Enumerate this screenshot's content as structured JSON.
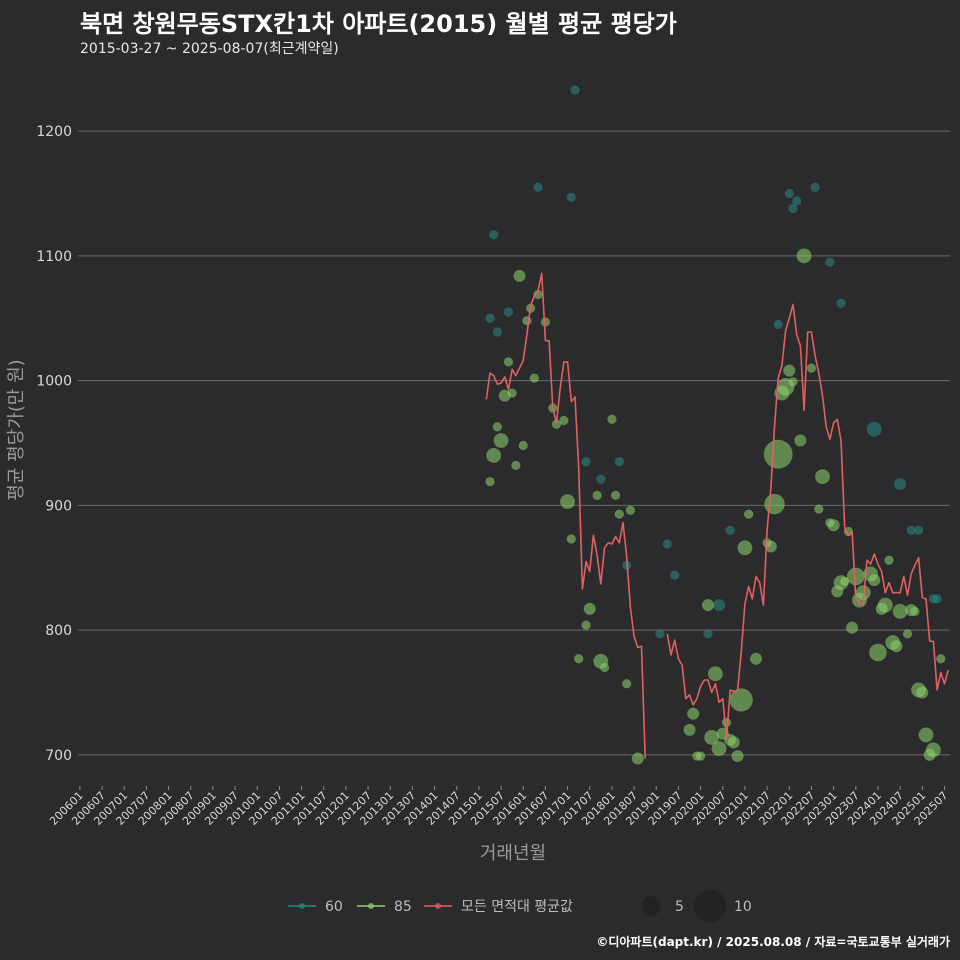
{
  "title": "북면 창원무동STX칸1차 아파트(2015) 월별 평균 평당가",
  "subtitle": "2015-03-27 ~ 2025-08-07(최근계약일)",
  "credit": "©디아파트(dapt.kr) / 2025.08.08 / 자료=국토교통부 실거래가",
  "colors": {
    "s60": "#2a8a86",
    "s85": "#8ed66b",
    "avg": "#e06060",
    "grid": "#6a6a6a",
    "bg": "#2b2b2d"
  },
  "chart_data": {
    "type": "line",
    "xlabel": "거래년월",
    "ylabel": "평균 평당가(만 원)",
    "ylim": [
      675,
      1245
    ],
    "yticks": [
      700,
      800,
      900,
      1000,
      1100,
      1200
    ],
    "x_start": "200601",
    "x_end": "202508",
    "xtick_labels": [
      "200601",
      "200607",
      "200701",
      "200707",
      "200801",
      "200807",
      "200901",
      "200907",
      "201001",
      "201007",
      "201101",
      "201107",
      "201201",
      "201207",
      "201301",
      "201307",
      "201401",
      "201407",
      "201501",
      "201507",
      "201601",
      "201607",
      "201701",
      "201707",
      "201801",
      "201807",
      "201901",
      "201907",
      "202001",
      "202007",
      "202101",
      "202107",
      "202201",
      "202207",
      "202301",
      "202307",
      "202401",
      "202407",
      "202501",
      "202507"
    ],
    "legend": {
      "series": [
        {
          "key": "s60",
          "label": "60"
        },
        {
          "key": "s85",
          "label": "85"
        },
        {
          "key": "avg",
          "label": "모든 면적대 평균값"
        }
      ],
      "sizes": [
        {
          "n": 5,
          "label": "5"
        },
        {
          "n": 10,
          "label": "10"
        }
      ]
    },
    "avg_line": [
      [
        "201503",
        985
      ],
      [
        "201504",
        1006
      ],
      [
        "201505",
        1004
      ],
      [
        "201506",
        997
      ],
      [
        "201507",
        998
      ],
      [
        "201508",
        1003
      ],
      [
        "201509",
        993
      ],
      [
        "201510",
        1009
      ],
      [
        "201511",
        1004
      ],
      [
        "201512",
        1010
      ],
      [
        "201601",
        1016
      ],
      [
        "201602",
        1037
      ],
      [
        "201603",
        1060
      ],
      [
        "201604",
        1068
      ],
      [
        "201605",
        1072
      ],
      [
        "201606",
        1086
      ],
      [
        "201607",
        1032
      ],
      [
        "201608",
        1032
      ],
      [
        "201609",
        978
      ],
      [
        "201610",
        966
      ],
      [
        "201611",
        994
      ],
      [
        "201612",
        1015
      ],
      [
        "201701",
        1015
      ],
      [
        "201702",
        983
      ],
      [
        "201703",
        987
      ],
      [
        "201704",
        930
      ],
      [
        "201705",
        833
      ],
      [
        "201706",
        855
      ],
      [
        "201707",
        847
      ],
      [
        "201708",
        876
      ],
      [
        "201709",
        860
      ],
      [
        "201710",
        837
      ],
      [
        "201711",
        866
      ],
      [
        "201712",
        870
      ],
      [
        "201801",
        869
      ],
      [
        "201802",
        875
      ],
      [
        "201803",
        870
      ],
      [
        "201804",
        886
      ],
      [
        "201805",
        859
      ],
      [
        "201806",
        818
      ],
      [
        "201807",
        795
      ],
      [
        "201808",
        786
      ],
      [
        "201809",
        787
      ],
      [
        "201810",
        697
      ],
      null,
      [
        "201904",
        797
      ],
      [
        "201905",
        780
      ],
      [
        "201906",
        792
      ],
      [
        "201907",
        777
      ],
      [
        "201908",
        772
      ],
      [
        "201909",
        745
      ],
      [
        "201910",
        748
      ],
      [
        "201911",
        740
      ],
      [
        "201912",
        745
      ],
      [
        "202001",
        755
      ],
      [
        "202002",
        760
      ],
      [
        "202003",
        760
      ],
      [
        "202004",
        750
      ],
      [
        "202005",
        757
      ],
      [
        "202006",
        742
      ],
      [
        "202007",
        745
      ],
      [
        "202008",
        713
      ],
      [
        "202009",
        752
      ],
      [
        "202010",
        751
      ],
      [
        "202011",
        751
      ],
      [
        "202012",
        782
      ],
      [
        "202101",
        821
      ],
      [
        "202102",
        835
      ],
      [
        "202103",
        825
      ],
      [
        "202104",
        843
      ],
      [
        "202105",
        838
      ],
      [
        "202106",
        820
      ],
      [
        "202107",
        880
      ],
      [
        "202108",
        913
      ],
      [
        "202109",
        963
      ],
      [
        "202110",
        1002
      ],
      [
        "202111",
        1012
      ],
      [
        "202112",
        1040
      ],
      [
        "202201",
        1050
      ],
      [
        "202202",
        1061
      ],
      [
        "202203",
        1037
      ],
      [
        "202204",
        1028
      ],
      [
        "202205",
        976
      ],
      [
        "202206",
        1039
      ],
      [
        "202207",
        1039
      ],
      [
        "202208",
        1020
      ],
      [
        "202209",
        1006
      ],
      [
        "202210",
        988
      ],
      [
        "202211",
        963
      ],
      [
        "202212",
        953
      ],
      [
        "202301",
        966
      ],
      [
        "202302",
        969
      ],
      [
        "202303",
        952
      ],
      [
        "202304",
        882
      ],
      [
        "202305",
        876
      ],
      [
        "202306",
        879
      ],
      [
        "202307",
        825
      ],
      [
        "202308",
        822
      ],
      [
        "202309",
        820
      ],
      [
        "202310",
        856
      ],
      [
        "202311",
        853
      ],
      [
        "202312",
        861
      ],
      [
        "202401",
        853
      ],
      [
        "202402",
        847
      ],
      [
        "202403",
        830
      ],
      [
        "202404",
        838
      ],
      [
        "202405",
        830
      ],
      [
        "202406",
        830
      ],
      [
        "202407",
        830
      ],
      [
        "202408",
        843
      ],
      [
        "202409",
        828
      ],
      [
        "202410",
        845
      ],
      [
        "202411",
        852
      ],
      [
        "202412",
        858
      ],
      [
        "202501",
        826
      ],
      [
        "202502",
        825
      ],
      [
        "202503",
        791
      ],
      [
        "202504",
        791
      ],
      [
        "202505",
        752
      ],
      [
        "202506",
        766
      ],
      [
        "202507",
        757
      ],
      [
        "202508",
        768
      ]
    ],
    "points_60": [
      [
        "201504",
        1050,
        1
      ],
      [
        "201505",
        1117,
        1
      ],
      [
        "201506",
        1039,
        1
      ],
      [
        "201509",
        1055,
        1
      ],
      [
        "201605",
        1155,
        1
      ],
      [
        "201702",
        1147,
        1
      ],
      [
        "201703",
        1233,
        1
      ],
      [
        "201706",
        935,
        1
      ],
      [
        "201710",
        921,
        1
      ],
      [
        "201803",
        935,
        1
      ],
      [
        "201805",
        852,
        1
      ],
      [
        "201902",
        797,
        1
      ],
      [
        "201904",
        869,
        1
      ],
      [
        "201906",
        844,
        1
      ],
      [
        "202003",
        797,
        1
      ],
      [
        "202006",
        820,
        2
      ],
      [
        "202009",
        880,
        1
      ],
      [
        "202110",
        1045,
        1
      ],
      [
        "202201",
        1150,
        1
      ],
      [
        "202202",
        1138,
        1
      ],
      [
        "202203",
        1144,
        1
      ],
      [
        "202208",
        1155,
        1
      ],
      [
        "202212",
        1095,
        1
      ],
      [
        "202303",
        1062,
        1
      ],
      [
        "202312",
        961,
        3
      ],
      [
        "202407",
        917,
        2
      ],
      [
        "202410",
        880,
        1
      ],
      [
        "202412",
        880,
        1
      ],
      [
        "202504",
        825,
        1
      ],
      [
        "202505",
        825,
        1
      ]
    ],
    "points_85": [
      [
        "201504",
        919,
        1
      ],
      [
        "201505",
        940,
        3
      ],
      [
        "201506",
        963,
        1
      ],
      [
        "201507",
        952,
        3
      ],
      [
        "201508",
        988,
        2
      ],
      [
        "201509",
        1015,
        1
      ],
      [
        "201510",
        990,
        1
      ],
      [
        "201511",
        932,
        1
      ],
      [
        "201512",
        1084,
        2
      ],
      [
        "201601",
        948,
        1
      ],
      [
        "201602",
        1048,
        1
      ],
      [
        "201603",
        1058,
        1
      ],
      [
        "201604",
        1002,
        1
      ],
      [
        "201605",
        1069,
        1
      ],
      [
        "201607",
        1047,
        1
      ],
      [
        "201609",
        978,
        1
      ],
      [
        "201610",
        965,
        1
      ],
      [
        "201612",
        968,
        1
      ],
      [
        "201701",
        903,
        3
      ],
      [
        "201702",
        873,
        1
      ],
      [
        "201704",
        777,
        1
      ],
      [
        "201706",
        804,
        1
      ],
      [
        "201707",
        817,
        2
      ],
      [
        "201709",
        908,
        1
      ],
      [
        "201710",
        775,
        3
      ],
      [
        "201711",
        770,
        1
      ],
      [
        "201801",
        969,
        1
      ],
      [
        "201802",
        908,
        1
      ],
      [
        "201803",
        893,
        1
      ],
      [
        "201805",
        757,
        1
      ],
      [
        "201806",
        896,
        1
      ],
      [
        "201808",
        697,
        2
      ],
      [
        "201910",
        720,
        2
      ],
      [
        "201911",
        733,
        2
      ],
      [
        "201912",
        699,
        1
      ],
      [
        "202001",
        699,
        1
      ],
      [
        "202003",
        820,
        2
      ],
      [
        "202004",
        714,
        3
      ],
      [
        "202005",
        765,
        3
      ],
      [
        "202006",
        705,
        3
      ],
      [
        "202007",
        717,
        2
      ],
      [
        "202008",
        726,
        1
      ],
      [
        "202009",
        712,
        2
      ],
      [
        "202010",
        710,
        2
      ],
      [
        "202011",
        699,
        2
      ],
      [
        "202012",
        744,
        6
      ],
      [
        "202101",
        866,
        3
      ],
      [
        "202102",
        893,
        1
      ],
      [
        "202104",
        777,
        2
      ],
      [
        "202107",
        870,
        1
      ],
      [
        "202108",
        867,
        2
      ],
      [
        "202109",
        901,
        5
      ],
      [
        "202110",
        941,
        8
      ],
      [
        "202111",
        990,
        3
      ],
      [
        "202112",
        995,
        4
      ],
      [
        "202201",
        1008,
        2
      ],
      [
        "202202",
        999,
        1
      ],
      [
        "202204",
        952,
        2
      ],
      [
        "202205",
        1100,
        3
      ],
      [
        "202207",
        1010,
        1
      ],
      [
        "202209",
        897,
        1
      ],
      [
        "202210",
        923,
        3
      ],
      [
        "202212",
        886,
        1
      ],
      [
        "202301",
        884,
        2
      ],
      [
        "202302",
        831,
        2
      ],
      [
        "202303",
        838,
        3
      ],
      [
        "202304",
        839,
        1
      ],
      [
        "202305",
        879,
        1
      ],
      [
        "202306",
        802,
        2
      ],
      [
        "202307",
        843,
        4
      ],
      [
        "202308",
        824,
        3
      ],
      [
        "202309",
        830,
        3
      ],
      [
        "202311",
        845,
        3
      ],
      [
        "202312",
        840,
        2
      ],
      [
        "202401",
        782,
        4
      ],
      [
        "202402",
        817,
        2
      ],
      [
        "202403",
        820,
        3
      ],
      [
        "202404",
        856,
        1
      ],
      [
        "202405",
        790,
        3
      ],
      [
        "202406",
        787,
        2
      ],
      [
        "202407",
        815,
        3
      ],
      [
        "202409",
        797,
        1
      ],
      [
        "202410",
        816,
        2
      ],
      [
        "202411",
        815,
        1
      ],
      [
        "202412",
        752,
        3
      ],
      [
        "202501",
        750,
        2
      ],
      [
        "202502",
        716,
        3
      ],
      [
        "202503",
        700,
        2
      ],
      [
        "202504",
        704,
        3
      ],
      [
        "202506",
        777,
        1
      ]
    ]
  }
}
